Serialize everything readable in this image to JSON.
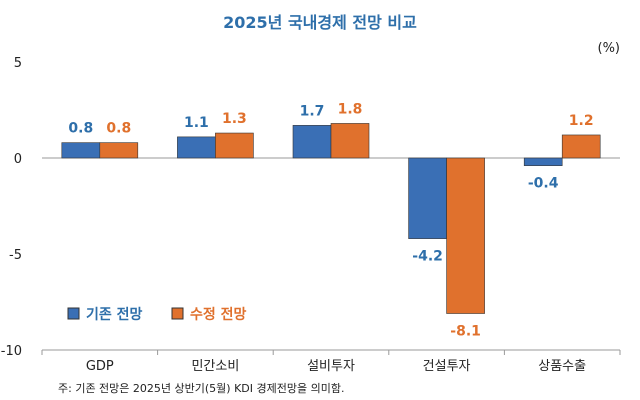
{
  "chart_data": {
    "type": "bar",
    "title": "2025년 국내경제 전망 비교",
    "unit": "(%)",
    "categories": [
      "GDP",
      "민간소비",
      "설비투자",
      "건설투자",
      "상품수출"
    ],
    "series": [
      {
        "name": "기존 전망",
        "color": "#3a6fb5",
        "values": [
          0.8,
          1.1,
          1.7,
          -4.2,
          -0.4
        ],
        "labels": [
          "0.8",
          "1.1",
          "1.7",
          "-4.2",
          "-0.4"
        ]
      },
      {
        "name": "수정 전망",
        "color": "#e0712d",
        "values": [
          0.8,
          1.3,
          1.8,
          -8.1,
          1.2
        ],
        "labels": [
          "0.8",
          "1.3",
          "1.8",
          "-8.1",
          "1.2"
        ]
      }
    ],
    "ylim": [
      -10,
      5
    ],
    "yticks": [
      "5",
      "0",
      "-5",
      "-10"
    ],
    "ytick_values": [
      5,
      0,
      -5,
      -10
    ],
    "legend_position": "bottom-left",
    "note": "주: 기존 전망은 2025년 상반기(5월) KDI 경제전망을 의미함."
  }
}
